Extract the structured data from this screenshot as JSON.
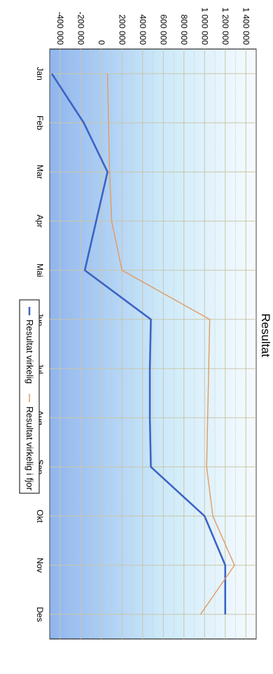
{
  "colors": {
    "series_blue": "#3d63c4",
    "series_orange": "#e39a62",
    "grid": "#c9c6a8",
    "bg_light": "#f6fbff",
    "bg_blue": "#9bbef0",
    "bg_cyan": "#bfe6fa"
  },
  "chart_data": {
    "type": "line",
    "title": "Resultat",
    "xlabel": "",
    "ylabel": "",
    "categories": [
      "Jan",
      "Feb",
      "Mar",
      "Apr",
      "Mai",
      "Jun",
      "Jul",
      "Aug",
      "Sep",
      "Okt",
      "Nov",
      "Des"
    ],
    "y_ticks": [
      "1 400 000",
      "1 200 000",
      "1 000 000",
      "800 000",
      "600 000",
      "400 000",
      "200 000",
      "0",
      "-200 000",
      "-400 000"
    ],
    "ylim": [
      -500000,
      1500000
    ],
    "grid": true,
    "legend_position": "bottom",
    "orientation": "rotated 90° clockwise",
    "series": [
      {
        "name": "Resultat virkelig",
        "color": "#3d63c4",
        "values": [
          -480000,
          -170000,
          60000,
          -50000,
          -160000,
          480000,
          470000,
          470000,
          480000,
          1000000,
          1200000,
          1200000
        ]
      },
      {
        "name": "Resultat virkelig i fjor",
        "color": "#e39a62",
        "values": [
          60000,
          70000,
          80000,
          100000,
          200000,
          1050000,
          1040000,
          1030000,
          1020000,
          1080000,
          1290000,
          960000
        ]
      }
    ]
  }
}
